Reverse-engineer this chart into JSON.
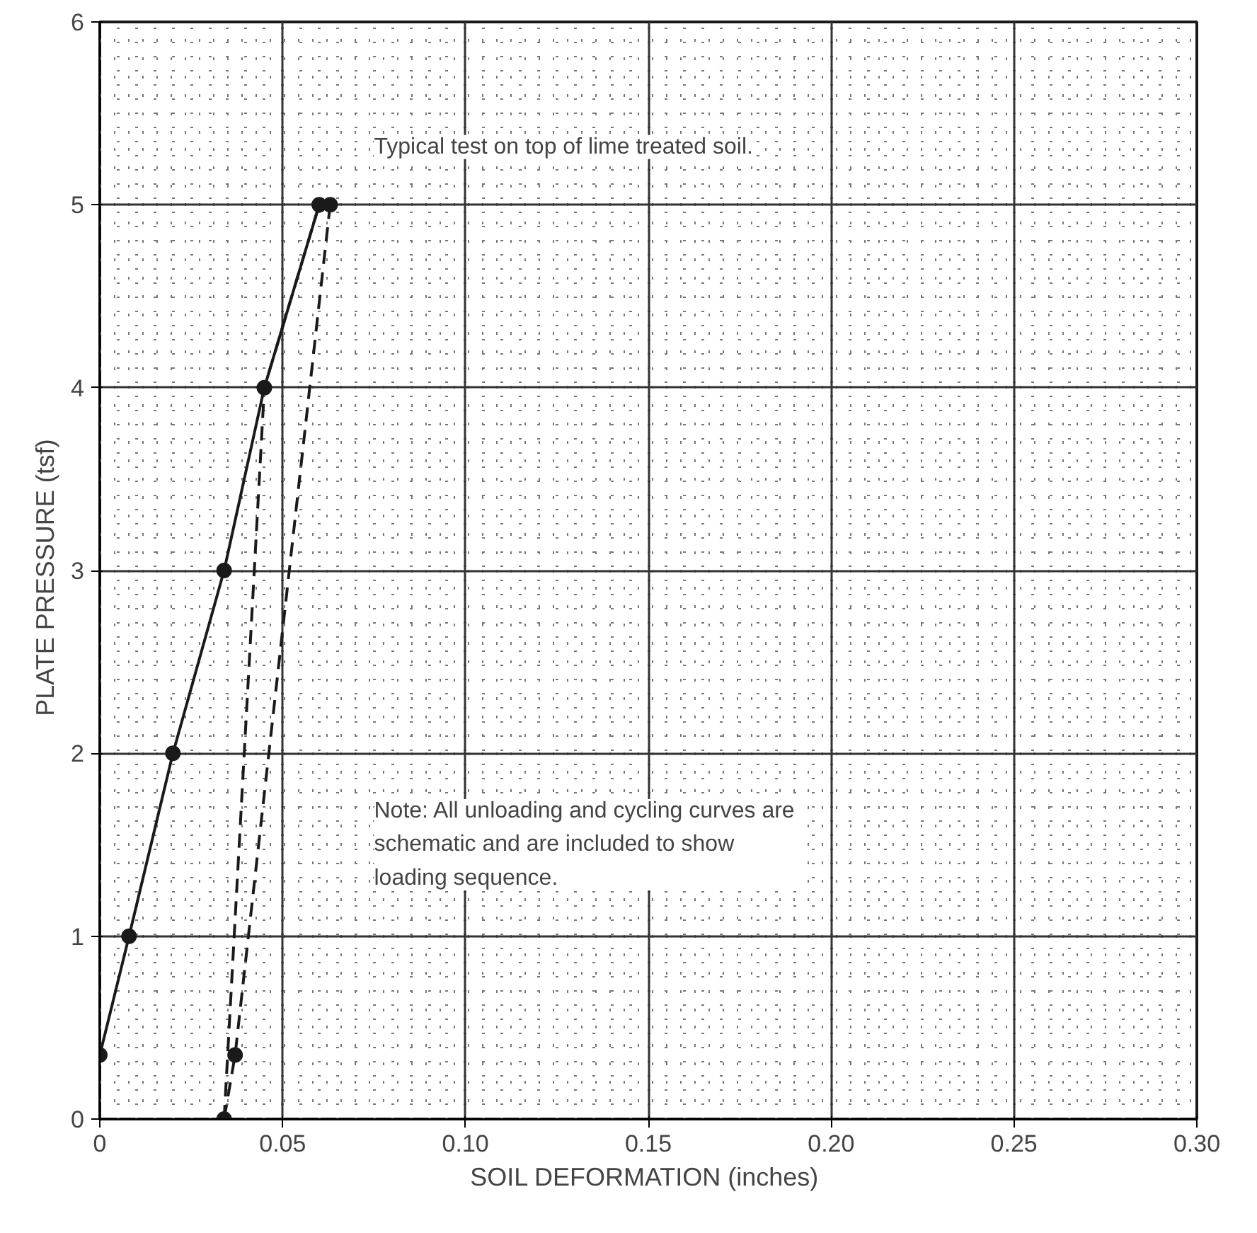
{
  "chart_data": {
    "type": "line",
    "xlabel": "SOIL  DEFORMATION (inches)",
    "ylabel": "PLATE  PRESSURE  (tsf)",
    "annotations": [
      "Typical test on top of lime treated soil.",
      "Note:  All unloading and cycling curves are\n           schematic and are included to show\n           loading sequence."
    ],
    "series": [
      {
        "color": "#1a1a1a",
        "line_style": "solid",
        "marker": "circle",
        "x": [
          0,
          0.008,
          0.02,
          0.034,
          0.045,
          0.06
        ],
        "values": [
          0.35,
          1,
          2,
          3,
          4,
          5
        ]
      },
      {
        "color": "#1a1a1a",
        "line_style": "dashed",
        "marker": "circle",
        "x": [
          0.063,
          0.037,
          0.034
        ],
        "values": [
          5,
          0.35,
          0
        ]
      },
      {
        "color": "#1a1a1a",
        "line_style": "dashed",
        "marker": "none",
        "x": [
          0.034,
          0.045,
          0.06
        ],
        "values": [
          0,
          4,
          5
        ]
      }
    ],
    "xlim": [
      0,
      0.3
    ],
    "ylim": [
      0,
      6
    ],
    "xticks": [
      {
        "value": 0,
        "label": "0"
      },
      0.05,
      {
        "value": 0.1,
        "label": "0.10"
      },
      0.15,
      {
        "value": 0.2,
        "label": "0.20"
      },
      0.25,
      {
        "value": 0.3,
        "label": "0.30"
      }
    ],
    "yticks": [
      0,
      1,
      2,
      3,
      4,
      5,
      6
    ],
    "grid": true
  }
}
